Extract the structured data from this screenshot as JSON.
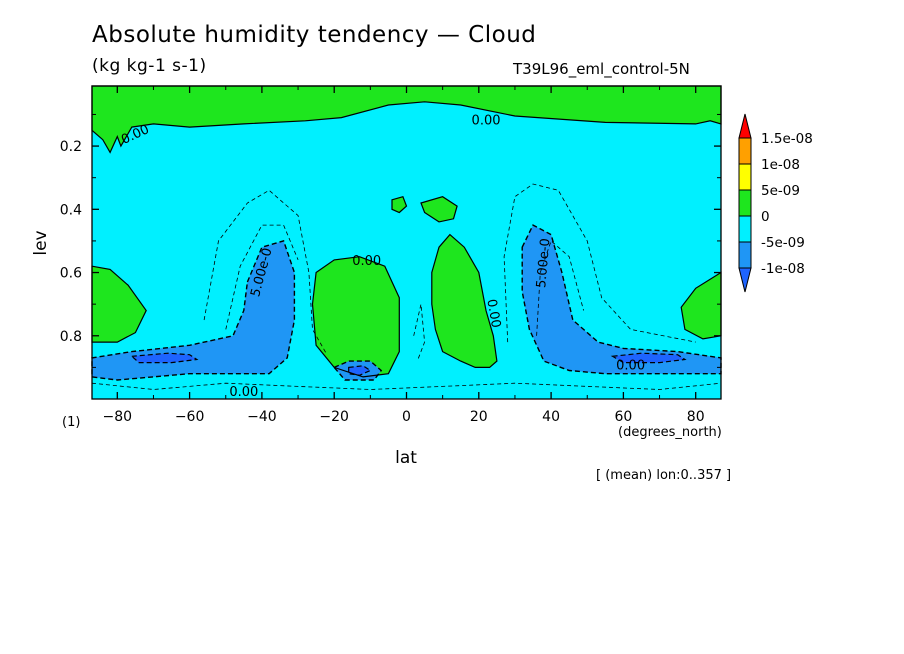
{
  "title": "Absolute humidity tendency — Cloud",
  "subtitle": "(kg kg-1 s-1)",
  "run_name": "T39L96_eml_control-5N",
  "figure_label": "(1)",
  "x_units": "(degrees_north)",
  "averaging_note": "[ (mean) lon:0..357 ]",
  "colors": {
    "c_lt_m1e8": "#1e64ff",
    "c_m1e8_m5e9": "#1f96f5",
    "c_m5e9_0": "#00f0ff",
    "c_0_5e9": "#1ee61e",
    "c_5e9_1e8": "#ffff00",
    "c_1e8_15e8": "#ffa000",
    "c_gt_15e8": "#ff0000"
  },
  "chart_data": {
    "type": "heatmap",
    "xlabel": "lat",
    "ylabel": "lev",
    "xlim": [
      -87,
      87
    ],
    "ylim": [
      1.0,
      0.01
    ],
    "xticks": [
      -80,
      -60,
      -40,
      -20,
      0,
      20,
      40,
      60,
      80
    ],
    "yticks": [
      0.2,
      0.4,
      0.6,
      0.8
    ],
    "colorbar": {
      "levels": [
        "1.5e-08",
        "1e-08",
        "5e-09",
        "0",
        "-5e-09",
        "-1e-08"
      ],
      "colors": [
        "#ff0000",
        "#ffa000",
        "#ffff00",
        "#1ee61e",
        "#00f0ff",
        "#1f96f5",
        "#1e64ff"
      ]
    },
    "contour_labels": [
      "0.00",
      "0.00",
      "0.00",
      "0.00",
      "0.00",
      "0.00",
      "5.00e-0",
      "5.00e-0"
    ],
    "regions": [
      {
        "name": "upper-positive-band",
        "value_range": "0 to 5e-09",
        "points": [
          [
            -87,
            0.01
          ],
          [
            87,
            0.01
          ],
          [
            87,
            0.13
          ],
          [
            84,
            0.12
          ],
          [
            80,
            0.13
          ],
          [
            55,
            0.125
          ],
          [
            30,
            0.105
          ],
          [
            15,
            0.07
          ],
          [
            5,
            0.06
          ],
          [
            -5,
            0.07
          ],
          [
            -18,
            0.11
          ],
          [
            -28,
            0.12
          ],
          [
            -45,
            0.13
          ],
          [
            -60,
            0.14
          ],
          [
            -70,
            0.13
          ],
          [
            -76,
            0.14
          ],
          [
            -79,
            0.2
          ],
          [
            -80,
            0.17
          ],
          [
            -82,
            0.22
          ],
          [
            -84,
            0.18
          ],
          [
            -87,
            0.15
          ]
        ]
      },
      {
        "name": "nh-subtropical-positive",
        "value_range": "0 to 5e-09",
        "points": [
          [
            9,
            0.52
          ],
          [
            12,
            0.48
          ],
          [
            16,
            0.52
          ],
          [
            20,
            0.6
          ],
          [
            22,
            0.72
          ],
          [
            24,
            0.8
          ],
          [
            25,
            0.88
          ],
          [
            23,
            0.9
          ],
          [
            19,
            0.9
          ],
          [
            15,
            0.88
          ],
          [
            10,
            0.85
          ],
          [
            8,
            0.78
          ],
          [
            7,
            0.7
          ],
          [
            7,
            0.6
          ]
        ]
      },
      {
        "name": "nh-small-positive",
        "value_range": "0 to 5e-09",
        "points": [
          [
            4,
            0.38
          ],
          [
            10,
            0.36
          ],
          [
            14,
            0.39
          ],
          [
            13,
            0.43
          ],
          [
            9,
            0.44
          ],
          [
            5,
            0.41
          ]
        ]
      },
      {
        "name": "equator-small-positive",
        "value_range": "0 to 5e-09",
        "points": [
          [
            -4,
            0.37
          ],
          [
            -1,
            0.36
          ],
          [
            0,
            0.39
          ],
          [
            -2,
            0.41
          ],
          [
            -4,
            0.4
          ]
        ]
      },
      {
        "name": "sh-subtropical-positive",
        "value_range": "0 to 5e-09",
        "points": [
          [
            -25,
            0.6
          ],
          [
            -20,
            0.56
          ],
          [
            -13,
            0.55
          ],
          [
            -6,
            0.58
          ],
          [
            -2,
            0.68
          ],
          [
            -2,
            0.85
          ],
          [
            -5,
            0.92
          ],
          [
            -12,
            0.93
          ],
          [
            -20,
            0.9
          ],
          [
            -25,
            0.83
          ],
          [
            -26,
            0.7
          ]
        ]
      },
      {
        "name": "sh-polar-positive",
        "value_range": "0 to 5e-09",
        "points": [
          [
            -87,
            0.58
          ],
          [
            -82,
            0.59
          ],
          [
            -77,
            0.64
          ],
          [
            -72,
            0.72
          ],
          [
            -75,
            0.79
          ],
          [
            -80,
            0.82
          ],
          [
            -87,
            0.82
          ]
        ]
      },
      {
        "name": "nh-polar-positive",
        "value_range": "0 to 5e-09",
        "points": [
          [
            87,
            0.6
          ],
          [
            80,
            0.65
          ],
          [
            76,
            0.71
          ],
          [
            77,
            0.78
          ],
          [
            82,
            0.81
          ],
          [
            87,
            0.8
          ]
        ]
      },
      {
        "name": "sh-midlat-negative",
        "value_range": "-1e-08 to -5e-09",
        "points": [
          [
            -44,
            0.63
          ],
          [
            -40,
            0.52
          ],
          [
            -34,
            0.5
          ],
          [
            -31,
            0.6
          ],
          [
            -31,
            0.75
          ],
          [
            -33,
            0.87
          ],
          [
            -38,
            0.92
          ],
          [
            -60,
            0.92
          ],
          [
            -80,
            0.94
          ],
          [
            -87,
            0.93
          ],
          [
            -87,
            0.87
          ],
          [
            -76,
            0.85
          ],
          [
            -60,
            0.83
          ],
          [
            -48,
            0.8
          ],
          [
            -45,
            0.72
          ]
        ]
      },
      {
        "name": "sh-midlat-core",
        "value_range": "< -1e-08",
        "points": [
          [
            -76,
            0.865
          ],
          [
            -66,
            0.855
          ],
          [
            -60,
            0.86
          ],
          [
            -58,
            0.875
          ],
          [
            -65,
            0.885
          ],
          [
            -74,
            0.885
          ]
        ]
      },
      {
        "name": "tropics-negative",
        "value_range": "-1e-08 to -5e-09",
        "points": [
          [
            -20,
            0.9
          ],
          [
            -16,
            0.88
          ],
          [
            -10,
            0.88
          ],
          [
            -7,
            0.91
          ],
          [
            -9,
            0.94
          ],
          [
            -17,
            0.94
          ]
        ]
      },
      {
        "name": "tropics-core",
        "value_range": "< -1e-08",
        "points": [
          [
            -16,
            0.9
          ],
          [
            -12,
            0.895
          ],
          [
            -10,
            0.91
          ],
          [
            -13,
            0.925
          ],
          [
            -16,
            0.92
          ]
        ]
      },
      {
        "name": "nh-midlat-negative",
        "value_range": "-1e-08 to -5e-09",
        "points": [
          [
            32,
            0.52
          ],
          [
            35,
            0.45
          ],
          [
            40,
            0.48
          ],
          [
            43,
            0.6
          ],
          [
            46,
            0.75
          ],
          [
            53,
            0.82
          ],
          [
            60,
            0.84
          ],
          [
            75,
            0.85
          ],
          [
            87,
            0.87
          ],
          [
            87,
            0.92
          ],
          [
            70,
            0.92
          ],
          [
            55,
            0.92
          ],
          [
            45,
            0.91
          ],
          [
            38,
            0.88
          ],
          [
            34,
            0.78
          ],
          [
            32,
            0.66
          ]
        ]
      },
      {
        "name": "nh-midlat-core",
        "value_range": "< -1e-08",
        "points": [
          [
            57,
            0.865
          ],
          [
            65,
            0.855
          ],
          [
            75,
            0.86
          ],
          [
            77,
            0.875
          ],
          [
            70,
            0.885
          ],
          [
            60,
            0.885
          ]
        ]
      }
    ]
  }
}
